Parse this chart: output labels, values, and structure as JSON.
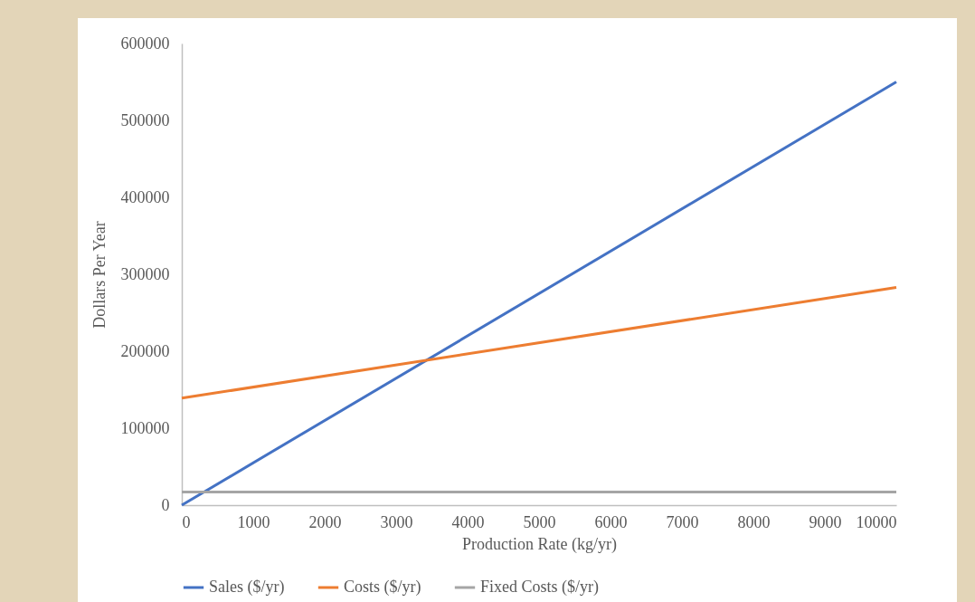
{
  "chart_data": {
    "type": "line",
    "xlabel": "Production Rate (kg/yr)",
    "ylabel": "Dollars Per Year",
    "x": [
      0,
      10000
    ],
    "series": [
      {
        "name": "Sales ($/yr)",
        "color": "#4472c4",
        "values": [
          0,
          550000
        ]
      },
      {
        "name": "Costs ($/yr)",
        "color": "#ed7d31",
        "values": [
          139000,
          283000
        ]
      },
      {
        "name": "Fixed Costs ($/yr)",
        "color": "#a5a5a5",
        "values": [
          17000,
          17000
        ]
      }
    ],
    "xlim": [
      0,
      10000
    ],
    "xticks": [
      0,
      1000,
      2000,
      3000,
      4000,
      5000,
      6000,
      7000,
      8000,
      9000,
      10000
    ],
    "ylim": [
      0,
      600000
    ],
    "yticks": [
      0,
      100000,
      200000,
      300000,
      400000,
      500000,
      600000
    ],
    "grid": false,
    "legend": "bottom",
    "marker": "none",
    "line_style": "solid"
  }
}
